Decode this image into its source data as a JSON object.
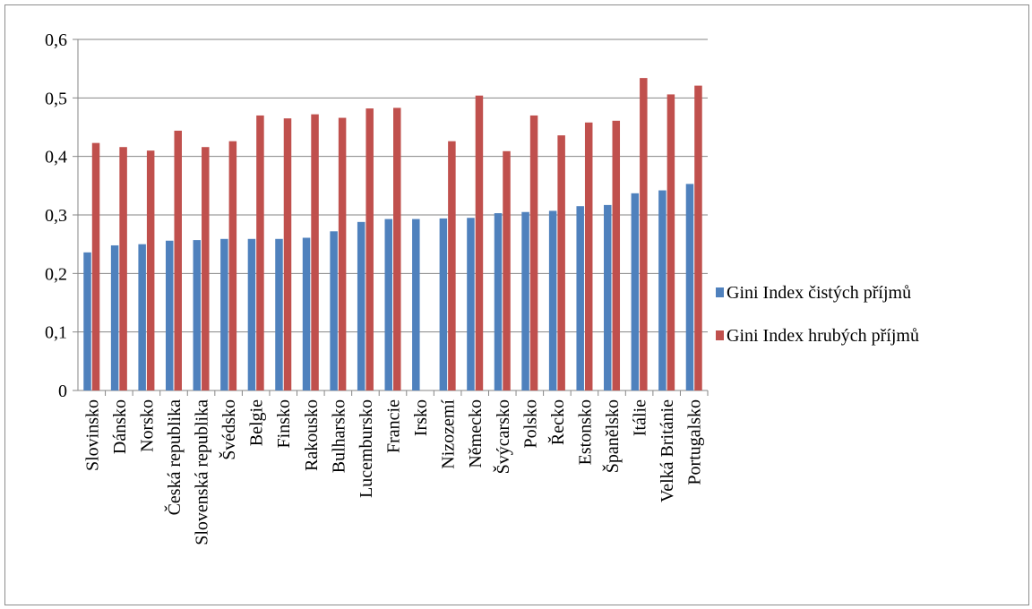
{
  "chart_data": {
    "type": "bar",
    "categories": [
      "Slovinsko",
      "Dánsko",
      "Norsko",
      "Česká republika",
      "Slovenská republika",
      "Švédsko",
      "Belgie",
      "Finsko",
      "Rakousko",
      "Bulharsko",
      "Lucembursko",
      "Francie",
      "Irsko",
      "Nizozemí",
      "Německo",
      "Švýcarsko",
      "Polsko",
      "Řecko",
      "Estonsko",
      "Španělsko",
      "Itálie",
      "Velká Británie",
      "Portugalsko"
    ],
    "series": [
      {
        "name": "Gini Index čistých příjmů",
        "color": "#4F81BD",
        "values": [
          0.236,
          0.248,
          0.25,
          0.256,
          0.257,
          0.259,
          0.259,
          0.259,
          0.261,
          0.272,
          0.288,
          0.293,
          0.293,
          0.294,
          0.295,
          0.303,
          0.305,
          0.307,
          0.315,
          0.317,
          0.337,
          0.342,
          0.353
        ]
      },
      {
        "name": "Gini Index hrubých příjmů",
        "color": "#C0504D",
        "values": [
          0.423,
          0.416,
          0.41,
          0.444,
          0.416,
          0.426,
          0.47,
          0.465,
          0.472,
          0.466,
          0.482,
          0.483,
          null,
          0.426,
          0.504,
          0.409,
          0.47,
          0.436,
          0.458,
          0.461,
          0.534,
          0.506,
          0.521
        ]
      }
    ],
    "ylim": [
      0,
      0.6
    ],
    "yticks": [
      "0",
      "0,1",
      "0,2",
      "0,3",
      "0,4",
      "0,5",
      "0,6"
    ],
    "grid": true,
    "legend_position": "right"
  }
}
